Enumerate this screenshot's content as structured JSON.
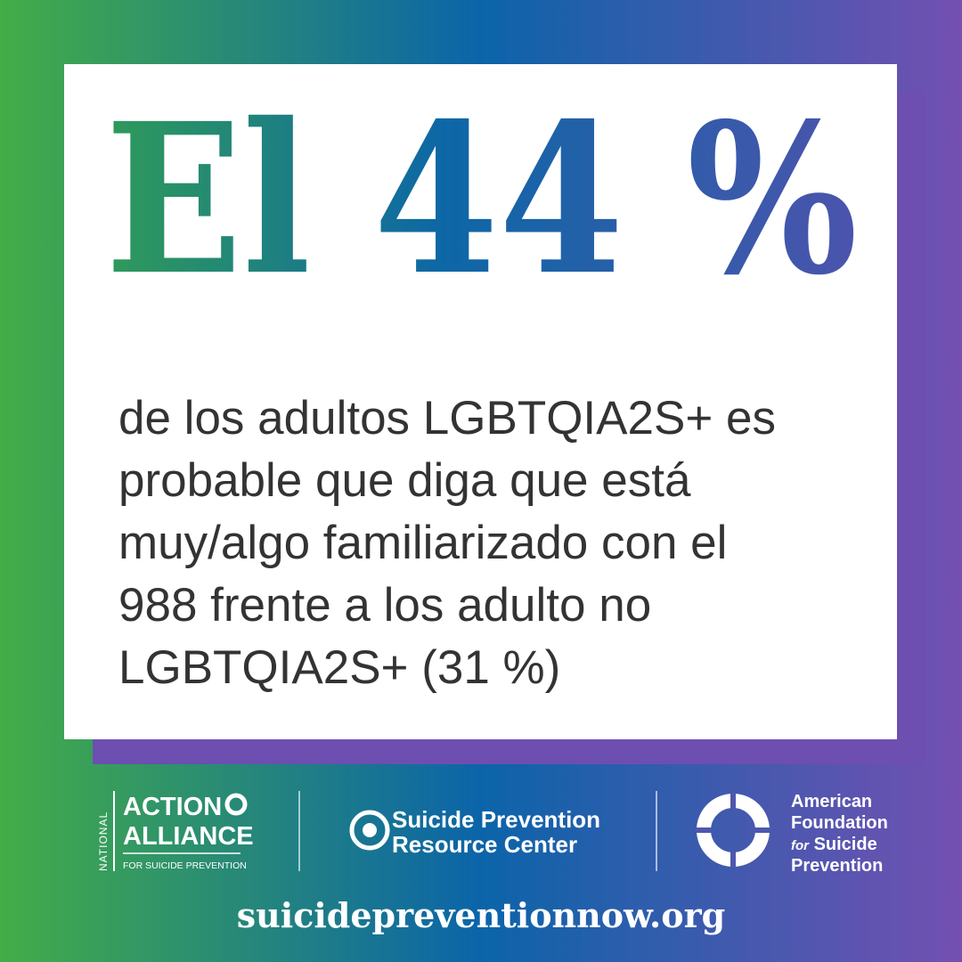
{
  "headline": "El 44 %",
  "body": [
    "de los adultos LGBTQIA2S+ es",
    "probable que diga que está",
    "muy/algo familiarizado con el",
    "988 frente a los adulto no",
    "LGBTQIA2S+ (31 %)"
  ],
  "logos": {
    "action_alliance": {
      "side": "NATIONAL",
      "line1": "ACTION",
      "line2": "ALLIANCE",
      "tagline": "FOR SUICIDE PREVENTION"
    },
    "sprc": {
      "line1": "Suicide Prevention",
      "line2": "Resource Center"
    },
    "afsp": {
      "line1": "American",
      "line2": "Foundation",
      "for": "for",
      "line3": "Suicide",
      "line4": "Prevention"
    }
  },
  "website": "suicidepreventionnow.org"
}
